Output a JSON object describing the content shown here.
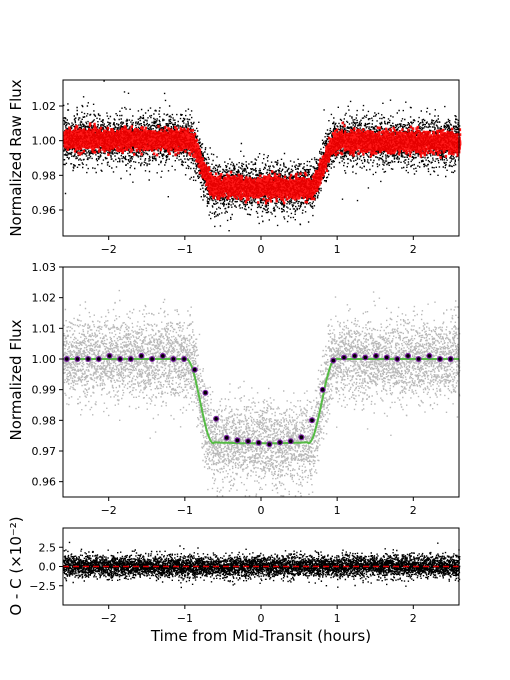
{
  "figure": {
    "xlabel": "Time from Mid-Transit (hours)"
  },
  "chart_data": [
    {
      "type": "scatter",
      "panel": "raw",
      "ylabel": "Normalized Raw Flux",
      "xlim": [
        -2.6,
        2.6
      ],
      "ylim": [
        0.945,
        1.035
      ],
      "xticks": [
        -2,
        -1,
        0,
        1,
        2
      ],
      "yticks": [
        0.96,
        0.98,
        1.0,
        1.02
      ],
      "yticklabels": [
        "0.96",
        "0.98",
        "1.00",
        "1.02"
      ],
      "grid": false,
      "legend": "none",
      "series": [
        {
          "role": "raw flux points",
          "color": "#000000",
          "scatter_sd": 0.007
        },
        {
          "role": "binned raw flux",
          "color": "#ff0000",
          "scatter_sd": 0.0028
        }
      ],
      "model": {
        "baseline": 1.0,
        "depth": 0.027,
        "t_ingress_start": -0.98,
        "t_ingress_end": -0.62,
        "t_egress_start": 0.62,
        "t_egress_end": 0.98,
        "slope_per_hour": -0.0012
      },
      "n_points": 7000
    },
    {
      "type": "scatter",
      "panel": "detrended",
      "ylabel": "Normalized Flux",
      "xlim": [
        -2.6,
        2.6
      ],
      "ylim": [
        0.955,
        1.03
      ],
      "xticks": [
        -2,
        -1,
        0,
        1,
        2
      ],
      "yticks": [
        0.96,
        0.97,
        0.98,
        0.99,
        1.0,
        1.01,
        1.02,
        1.03
      ],
      "yticklabels": [
        "0.96",
        "0.97",
        "0.98",
        "0.99",
        "1.00",
        "1.01",
        "1.02",
        "1.03"
      ],
      "grid": false,
      "legend": "none",
      "series": [
        {
          "role": "normalized flux points",
          "color": "#a0a0a0"
        },
        {
          "role": "transit model",
          "color": "#55bb44"
        },
        {
          "role": "binned flux",
          "color": "#7a1fa2"
        }
      ],
      "binned": {
        "x": [
          -2.55,
          -2.41,
          -2.27,
          -2.13,
          -1.99,
          -1.85,
          -1.71,
          -1.57,
          -1.43,
          -1.29,
          -1.15,
          -1.01,
          -0.87,
          -0.73,
          -0.59,
          -0.45,
          -0.31,
          -0.17,
          -0.03,
          0.11,
          0.25,
          0.39,
          0.53,
          0.67,
          0.81,
          0.95,
          1.09,
          1.23,
          1.37,
          1.51,
          1.65,
          1.79,
          1.93,
          2.07,
          2.21,
          2.35,
          2.49
        ],
        "y": [
          1.0,
          1.0,
          1.0,
          1.0,
          1.001,
          1.0,
          1.0,
          1.001,
          1.0,
          1.001,
          1.0,
          1.0,
          0.9965,
          0.989,
          0.9805,
          0.9743,
          0.9735,
          0.9732,
          0.9727,
          0.9722,
          0.9728,
          0.9732,
          0.9745,
          0.98,
          0.99,
          0.9995,
          1.0005,
          1.001,
          1.0005,
          1.001,
          1.0005,
          1.0,
          1.001,
          1.0,
          1.001,
          1.0,
          1.0
        ]
      },
      "model": {
        "baseline": 1.0,
        "depth": 0.0275,
        "t_ingress_start": -0.98,
        "t_ingress_end": -0.62,
        "t_egress_start": 0.62,
        "t_egress_end": 0.98
      },
      "n_points": 7000
    },
    {
      "type": "scatter",
      "panel": "residuals",
      "ylabel": "O - C (×10⁻²)",
      "xlim": [
        -2.6,
        2.6
      ],
      "ylim": [
        -5,
        5
      ],
      "xticks": [
        -2,
        -1,
        0,
        1,
        2
      ],
      "yticks": [
        -2.5,
        0.0,
        2.5
      ],
      "yticklabels": [
        "−2.5",
        "0.0",
        "2.5"
      ],
      "grid": false,
      "legend": "none",
      "series": [
        {
          "role": "residual points",
          "color": "#000000",
          "scatter_sd": 0.7
        },
        {
          "role": "zero line",
          "color": "#dd0000",
          "style": "dashed",
          "value": 0.0
        }
      ],
      "n_points": 7000
    }
  ],
  "xticklabels": [
    "−2",
    "−1",
    "0",
    "1",
    "2"
  ]
}
